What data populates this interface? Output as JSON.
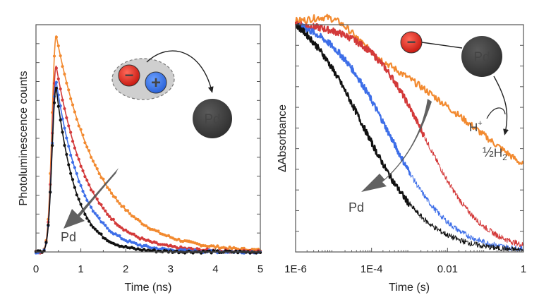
{
  "chart_data": [
    {
      "type": "line",
      "name": "photoluminescence-decay",
      "xlabel": "Time (ns)",
      "ylabel": "Photoluminescence counts",
      "xlim": [
        0,
        5
      ],
      "xticks": [
        0,
        1,
        2,
        3,
        4,
        5
      ],
      "xtick_labels": [
        "0",
        "1",
        "2",
        "3",
        "4",
        "5"
      ],
      "ylim": [
        0,
        1.05
      ],
      "y_tick_labels_shown": false,
      "peak_time": 0.45,
      "rise_width": 0.13,
      "series": [
        {
          "name": "orange",
          "color": "#f28a30",
          "peak": 1.0,
          "decay_tau": 0.95
        },
        {
          "name": "red",
          "color": "#d33a3a",
          "peak": 0.86,
          "decay_tau": 0.72
        },
        {
          "name": "blue",
          "color": "#3d6ee8",
          "peak": 0.79,
          "decay_tau": 0.58
        },
        {
          "name": "black",
          "color": "#111111",
          "peak": 0.76,
          "decay_tau": 0.44
        }
      ],
      "annotations": {
        "arrow_label": "Pd",
        "pd_label": "Pd",
        "minus_sign": "−",
        "plus_sign": "+"
      }
    },
    {
      "type": "line",
      "name": "transient-absorption",
      "xlabel": "Time (s)",
      "ylabel": "ΔAbsorbance",
      "xscale": "log",
      "xlim_exp": [
        -6,
        0
      ],
      "xtick_exps": [
        -6,
        -4,
        -2,
        0
      ],
      "xtick_labels": [
        "1E-6",
        "1E-4",
        "0.01",
        "1"
      ],
      "ylim": [
        0,
        1
      ],
      "y_tick_labels_shown": false,
      "series": [
        {
          "name": "orange",
          "color": "#f28a30",
          "start_exp": -6,
          "end_exp": 0,
          "width": 2.2,
          "half_decay_exp": -1.35,
          "steepness": 2.1,
          "bump": 0.08
        },
        {
          "name": "red",
          "color": "#d33a3a",
          "start_exp": -6,
          "end_exp": -2.6,
          "width": 2.2,
          "half_decay_exp": -2.6,
          "steepness": 0.75,
          "bump": 0.0
        },
        {
          "name": "red-thin",
          "color": "#d33a3a",
          "start_exp": -2.6,
          "end_exp": 0,
          "width": 1.0,
          "half_decay_exp": -2.6,
          "steepness": 0.75,
          "bump": 0.0
        },
        {
          "name": "blue",
          "color": "#3d6ee8",
          "start_exp": -6,
          "end_exp": -3.0,
          "width": 2.2,
          "half_decay_exp": -3.55,
          "steepness": 0.8,
          "bump": 0.0
        },
        {
          "name": "blue-thin",
          "color": "#3d6ee8",
          "start_exp": -3.0,
          "end_exp": 0,
          "width": 1.0,
          "half_decay_exp": -3.55,
          "steepness": 0.8,
          "bump": 0.0
        },
        {
          "name": "black",
          "color": "#111111",
          "start_exp": -6,
          "end_exp": -3.0,
          "width": 2.2,
          "half_decay_exp": -4.25,
          "steepness": 0.85,
          "bump": 0.0
        },
        {
          "name": "black-thin",
          "color": "#111111",
          "start_exp": -3.0,
          "end_exp": 0,
          "width": 1.0,
          "half_decay_exp": -4.25,
          "steepness": 0.85,
          "bump": 0.0
        }
      ],
      "annotations": {
        "arrow_label": "Pd",
        "pd_label": "Pd",
        "minus_sign": "−",
        "h_plus": "H",
        "h_plus_sup": "+",
        "half_h2": "½",
        "h2_main": "H",
        "h2_sub": "2"
      }
    }
  ]
}
